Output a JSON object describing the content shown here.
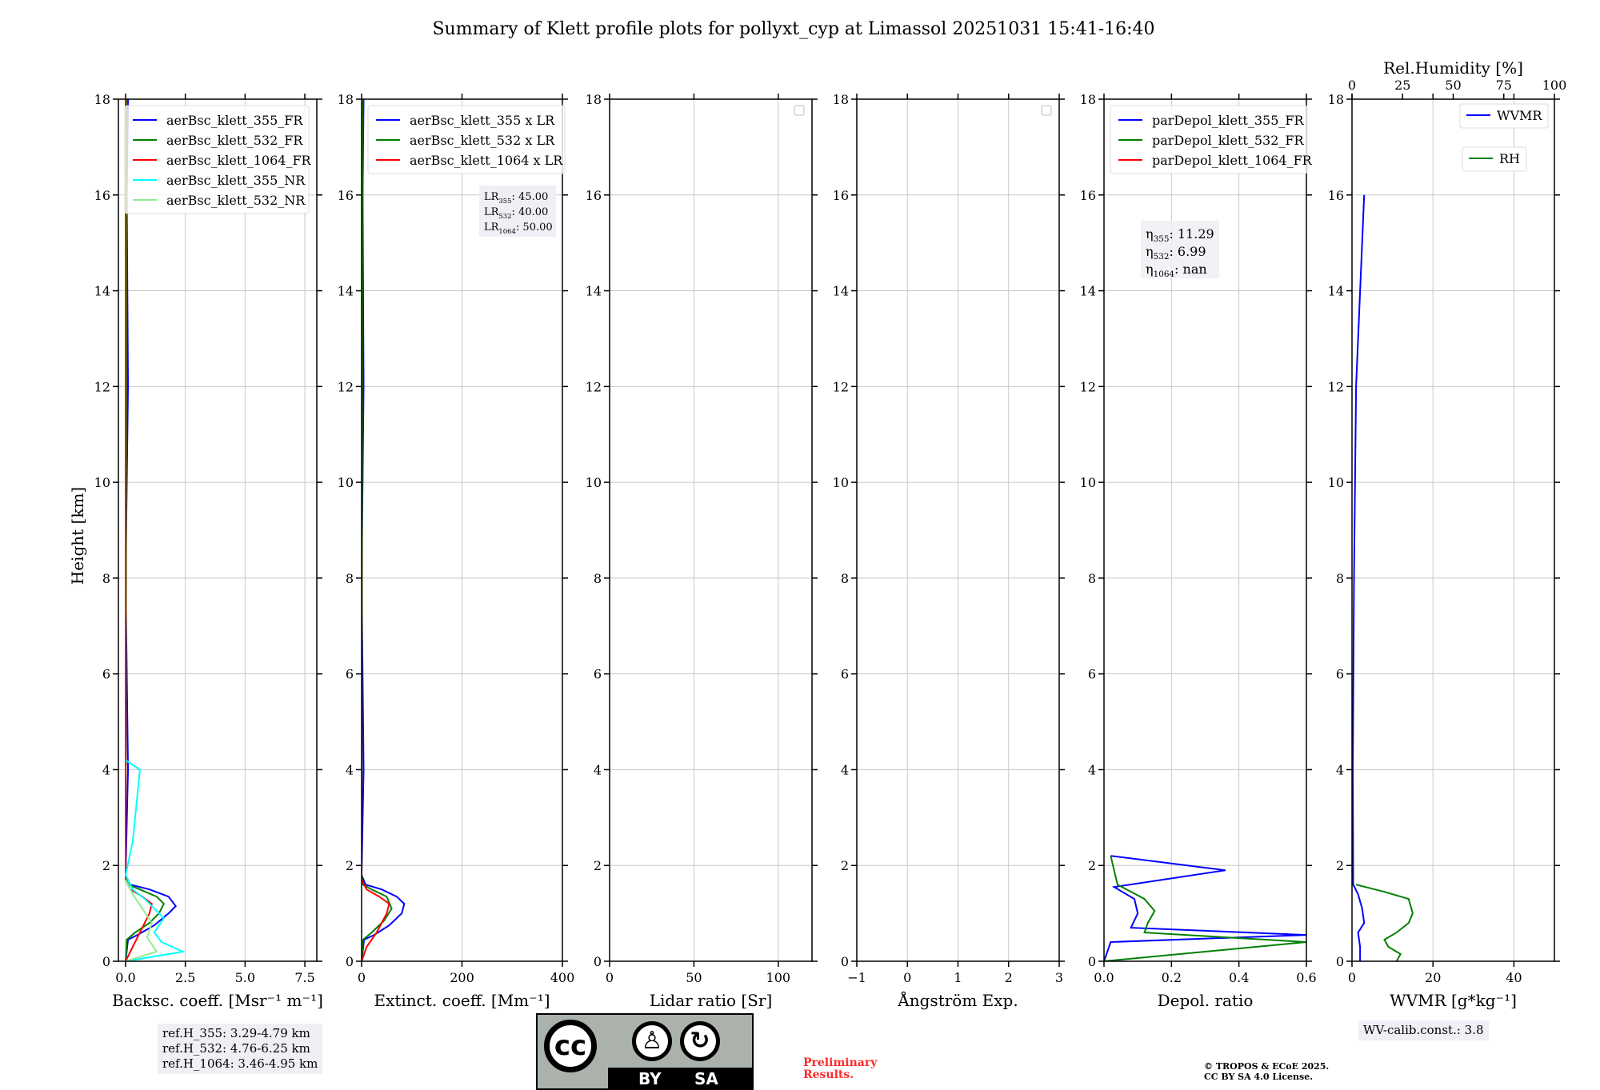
{
  "suptitle": "Summary of Klett profile plots for pollyxt_cyp at Limassol 20251031 15:41-16:40",
  "ylabel": "Height [km]",
  "ylim": [
    0,
    18
  ],
  "yticks": [
    "0",
    "2",
    "4",
    "6",
    "8",
    "10",
    "12",
    "14",
    "16",
    "18"
  ],
  "colors": {
    "blue": "#0000ff",
    "green": "#008000",
    "red": "#ff0000",
    "cyan": "#00ffff",
    "lightgreen": "#90ee90"
  },
  "chart_data": [
    {
      "type": "line",
      "id": "bsc",
      "xlabel": "Backsc. coeff. [Msr⁻¹ m⁻¹]",
      "xlim": [
        -0.3,
        8.0
      ],
      "xticks": [
        "0.0",
        "2.5",
        "5.0",
        "7.5"
      ],
      "xtick_values": [
        0,
        2.5,
        5,
        7.5
      ],
      "legend": [
        "aerBsc_klett_355_FR",
        "aerBsc_klett_532_FR",
        "aerBsc_klett_1064_FR",
        "aerBsc_klett_355_NR",
        "aerBsc_klett_532_NR"
      ],
      "series": [
        {
          "name": "aerBsc_klett_355_FR",
          "color": "blue",
          "points": [
            [
              0.0,
              0.0
            ],
            [
              0.1,
              0.45
            ],
            [
              0.5,
              0.55
            ],
            [
              1.2,
              0.75
            ],
            [
              1.8,
              1.0
            ],
            [
              2.1,
              1.15
            ],
            [
              1.8,
              1.35
            ],
            [
              1.0,
              1.5
            ],
            [
              0.2,
              1.6
            ],
            [
              0.0,
              1.8
            ],
            [
              0.1,
              4.0
            ],
            [
              0.0,
              8.0
            ],
            [
              0.1,
              12.0
            ],
            [
              0.05,
              16.0
            ],
            [
              0.1,
              18.0
            ]
          ]
        },
        {
          "name": "aerBsc_klett_532_FR",
          "color": "green",
          "points": [
            [
              0.0,
              0.0
            ],
            [
              0.05,
              0.45
            ],
            [
              0.4,
              0.6
            ],
            [
              1.0,
              0.8
            ],
            [
              1.4,
              1.0
            ],
            [
              1.6,
              1.2
            ],
            [
              1.3,
              1.35
            ],
            [
              0.6,
              1.5
            ],
            [
              0.1,
              1.6
            ],
            [
              0.0,
              1.8
            ],
            [
              0.05,
              18.0
            ]
          ]
        },
        {
          "name": "aerBsc_klett_1064_FR",
          "color": "red",
          "points": [
            [
              0.0,
              0.0
            ],
            [
              0.3,
              0.3
            ],
            [
              0.7,
              0.7
            ],
            [
              1.0,
              1.0
            ],
            [
              1.1,
              1.2
            ],
            [
              0.7,
              1.35
            ],
            [
              0.2,
              1.5
            ],
            [
              0.0,
              1.7
            ],
            [
              0.0,
              18.0
            ]
          ]
        },
        {
          "name": "aerBsc_klett_355_NR",
          "color": "cyan",
          "points": [
            [
              0.0,
              0.0
            ],
            [
              2.4,
              0.2
            ],
            [
              1.5,
              0.4
            ],
            [
              1.2,
              0.6
            ],
            [
              1.6,
              0.9
            ],
            [
              1.2,
              1.1
            ],
            [
              0.8,
              1.3
            ],
            [
              0.3,
              1.5
            ],
            [
              0.0,
              1.8
            ],
            [
              0.3,
              2.5
            ],
            [
              0.6,
              4.0
            ],
            [
              0.0,
              4.2
            ]
          ]
        },
        {
          "name": "aerBsc_klett_532_NR",
          "color": "lightgreen",
          "points": [
            [
              0.0,
              0.0
            ],
            [
              1.3,
              0.2
            ],
            [
              0.9,
              0.5
            ],
            [
              1.1,
              0.8
            ],
            [
              0.7,
              1.1
            ],
            [
              0.3,
              1.4
            ],
            [
              0.0,
              1.7
            ]
          ]
        }
      ],
      "note": [
        "ref.H_355: 3.29-4.79 km",
        "ref.H_532: 4.76-6.25 km",
        "ref.H_1064: 3.46-4.95 km"
      ]
    },
    {
      "type": "line",
      "id": "ext",
      "xlabel": "Extinct. coeff. [Mm⁻¹]",
      "xlim": [
        0,
        400
      ],
      "xticks": [
        "0",
        "200",
        "400"
      ],
      "xtick_values": [
        0,
        200,
        400
      ],
      "legend": [
        "aerBsc_klett_355 x LR",
        "aerBsc_klett_532 x LR",
        "aerBsc_klett_1064 x LR"
      ],
      "series": [
        {
          "name": "aerBsc_klett_355 x LR",
          "color": "blue",
          "points": [
            [
              0,
              0.0
            ],
            [
              5,
              0.45
            ],
            [
              25,
              0.55
            ],
            [
              55,
              0.75
            ],
            [
              80,
              1.0
            ],
            [
              85,
              1.2
            ],
            [
              70,
              1.35
            ],
            [
              40,
              1.5
            ],
            [
              8,
              1.6
            ],
            [
              0,
              1.8
            ],
            [
              4,
              4.0
            ],
            [
              0,
              8.0
            ],
            [
              4,
              12.0
            ],
            [
              2,
              16.0
            ],
            [
              4,
              18.0
            ]
          ]
        },
        {
          "name": "aerBsc_klett_532 x LR",
          "color": "green",
          "points": [
            [
              0,
              0.0
            ],
            [
              3,
              0.45
            ],
            [
              20,
              0.6
            ],
            [
              45,
              0.85
            ],
            [
              60,
              1.1
            ],
            [
              50,
              1.35
            ],
            [
              20,
              1.5
            ],
            [
              3,
              1.6
            ],
            [
              0,
              1.8
            ],
            [
              2,
              18.0
            ]
          ]
        },
        {
          "name": "aerBsc_klett_1064 x LR",
          "color": "red",
          "points": [
            [
              0,
              0.0
            ],
            [
              10,
              0.3
            ],
            [
              30,
              0.6
            ],
            [
              50,
              1.0
            ],
            [
              55,
              1.2
            ],
            [
              35,
              1.35
            ],
            [
              10,
              1.5
            ],
            [
              0,
              1.7
            ],
            [
              0,
              18.0
            ]
          ]
        }
      ],
      "lr_labels": [
        [
          "LR",
          "355",
          ": 45.00"
        ],
        [
          "LR",
          "532",
          ": 40.00"
        ],
        [
          "LR",
          "1064",
          ": 50.00"
        ]
      ]
    },
    {
      "type": "line",
      "id": "lr",
      "xlabel": "Lidar ratio [Sr]",
      "xlim": [
        0,
        120
      ],
      "xticks": [
        "0",
        "50",
        "100"
      ],
      "xtick_values": [
        0,
        50,
        100
      ],
      "series": []
    },
    {
      "type": "line",
      "id": "ang",
      "xlabel": "Ångström Exp.",
      "xlim": [
        -1,
        3
      ],
      "xticks": [
        "−1",
        "0",
        "1",
        "2",
        "3"
      ],
      "xtick_values": [
        -1,
        0,
        1,
        2,
        3
      ],
      "series": []
    },
    {
      "type": "line",
      "id": "depol",
      "xlabel": "Depol. ratio",
      "xlim": [
        0,
        0.6
      ],
      "xticks": [
        "0.0",
        "0.2",
        "0.4",
        "0.6"
      ],
      "xtick_values": [
        0,
        0.2,
        0.4,
        0.6
      ],
      "legend": [
        "parDepol_klett_355_FR",
        "parDepol_klett_532_FR",
        "parDepol_klett_1064_FR"
      ],
      "series": [
        {
          "name": "parDepol_klett_355_FR",
          "color": "blue",
          "points": [
            [
              0.0,
              0.0
            ],
            [
              0.02,
              0.4
            ],
            [
              0.6,
              0.55
            ],
            [
              0.08,
              0.7
            ],
            [
              0.1,
              1.0
            ],
            [
              0.09,
              1.3
            ],
            [
              0.03,
              1.55
            ],
            [
              0.36,
              1.9
            ],
            [
              0.02,
              2.2
            ]
          ]
        },
        {
          "name": "parDepol_klett_532_FR",
          "color": "green",
          "points": [
            [
              0.0,
              0.0
            ],
            [
              0.6,
              0.4
            ],
            [
              0.12,
              0.6
            ],
            [
              0.13,
              0.8
            ],
            [
              0.15,
              1.05
            ],
            [
              0.12,
              1.3
            ],
            [
              0.04,
              1.6
            ],
            [
              0.02,
              2.2
            ]
          ]
        },
        {
          "name": "parDepol_klett_1064_FR",
          "color": "red",
          "points": []
        }
      ],
      "eta_labels": [
        [
          "η",
          "355",
          ": 11.29"
        ],
        [
          "η",
          "532",
          ": 6.99"
        ],
        [
          "η",
          "1064",
          ": nan"
        ]
      ]
    },
    {
      "type": "line",
      "id": "wv",
      "xlabel": "WVMR [g*kg⁻¹]",
      "xlim": [
        0,
        50
      ],
      "xticks": [
        "0",
        "20",
        "40"
      ],
      "xtick_values": [
        0,
        20,
        40
      ],
      "top_label": "Rel.Humidity [%]",
      "top_xlim": [
        0,
        100
      ],
      "top_xticks": [
        "0",
        "25",
        "50",
        "75",
        "100"
      ],
      "top_xtick_values": [
        0,
        25,
        50,
        75,
        100
      ],
      "legend": [
        "WVMR",
        "RH"
      ],
      "series": [
        {
          "name": "WVMR",
          "color": "blue",
          "points": [
            [
              2.0,
              0.0
            ],
            [
              2.0,
              0.3
            ],
            [
              1.5,
              0.6
            ],
            [
              3.0,
              0.8
            ],
            [
              2.5,
              1.1
            ],
            [
              1.5,
              1.4
            ],
            [
              0.3,
              1.6
            ],
            [
              0.2,
              4.0
            ],
            [
              0.5,
              8.0
            ],
            [
              1.0,
              12.0
            ],
            [
              3.0,
              16.0
            ]
          ]
        },
        {
          "name": "RH",
          "color": "green",
          "points": [
            [
              11,
              0.0
            ],
            [
              12,
              0.15
            ],
            [
              9,
              0.3
            ],
            [
              8,
              0.45
            ],
            [
              11,
              0.6
            ],
            [
              14,
              0.8
            ],
            [
              15,
              1.0
            ],
            [
              14,
              1.3
            ],
            [
              8,
              1.45
            ],
            [
              1,
              1.6
            ]
          ]
        }
      ],
      "note": [
        "WV-calib.const.: 3.8"
      ]
    }
  ],
  "footer": {
    "preliminary": [
      "Preliminary",
      "Results."
    ],
    "copyright": [
      "© TROPOS & ECoE 2025.",
      "CC BY SA 4.0 License."
    ],
    "cc_badge": {
      "cc": "cc",
      "by": "BY",
      "sa": "SA"
    }
  }
}
